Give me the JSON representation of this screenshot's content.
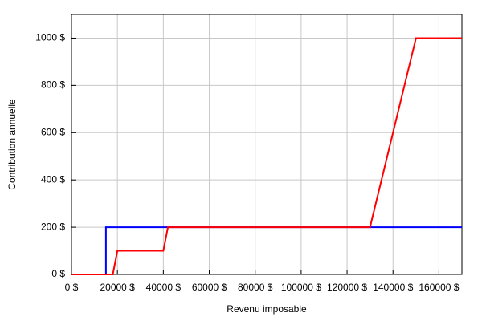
{
  "chart_data": {
    "type": "line",
    "x_label": "Revenu imposable",
    "y_label": "Contribution annuelle",
    "xlim": [
      0,
      170000
    ],
    "ylim": [
      0,
      1100
    ],
    "xticks": [
      {
        "value": 0,
        "label": "0 $"
      },
      {
        "value": 20000,
        "label": "20000 $"
      },
      {
        "value": 40000,
        "label": "40000 $"
      },
      {
        "value": 60000,
        "label": "60000 $"
      },
      {
        "value": 80000,
        "label": "80000 $"
      },
      {
        "value": 100000,
        "label": "100000 $"
      },
      {
        "value": 120000,
        "label": "120000 $"
      },
      {
        "value": 140000,
        "label": "140000 $"
      },
      {
        "value": 160000,
        "label": "160000 $"
      }
    ],
    "yticks": [
      {
        "value": 0,
        "label": "0 $"
      },
      {
        "value": 200,
        "label": "200 $"
      },
      {
        "value": 400,
        "label": "400 $"
      },
      {
        "value": 600,
        "label": "600 $"
      },
      {
        "value": 800,
        "label": "800 $"
      },
      {
        "value": 1000,
        "label": "1000 $"
      }
    ],
    "grid": true,
    "series": [
      {
        "color": "#0000ff",
        "x": [
          0,
          15000,
          15000,
          170000
        ],
        "values": [
          0,
          0,
          200,
          200
        ]
      },
      {
        "color": "#ff0000",
        "x": [
          0,
          18000,
          20000,
          40000,
          42000,
          130000,
          150000,
          170000
        ],
        "values": [
          0,
          0,
          100,
          100,
          200,
          200,
          1000,
          1000
        ]
      }
    ]
  }
}
